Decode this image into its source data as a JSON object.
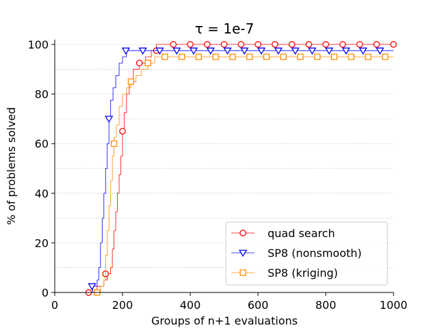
{
  "chart_data": {
    "type": "line",
    "title": "τ = 1e-7",
    "xlabel": "Groups of n+1 evaluations",
    "ylabel": "% of problems solved",
    "xlim": [
      0,
      1000
    ],
    "ylim": [
      0,
      100
    ],
    "xticks": [
      0,
      200,
      400,
      600,
      800,
      1000
    ],
    "yticks": [
      0,
      20,
      40,
      60,
      80,
      100
    ],
    "grid": "horizontal dotted",
    "legend_position": "lower-right",
    "series": [
      {
        "name": "quad search",
        "color": "#ff0000",
        "marker": "circle",
        "steps": [
          [
            0,
            0
          ],
          [
            100,
            0
          ],
          [
            125,
            2.5
          ],
          [
            145,
            5
          ],
          [
            155,
            7.5
          ],
          [
            165,
            10
          ],
          [
            170,
            17.5
          ],
          [
            175,
            25
          ],
          [
            180,
            32.5
          ],
          [
            185,
            40
          ],
          [
            190,
            47.5
          ],
          [
            195,
            55
          ],
          [
            200,
            65
          ],
          [
            205,
            72.5
          ],
          [
            212,
            80
          ],
          [
            220,
            85
          ],
          [
            232,
            90
          ],
          [
            250,
            92.5
          ],
          [
            268,
            95
          ],
          [
            285,
            97.5
          ],
          [
            300,
            100
          ],
          [
            1000,
            100
          ]
        ],
        "markers": [
          [
            100,
            0
          ],
          [
            150,
            7.5
          ],
          [
            200,
            65
          ],
          [
            250,
            92.5
          ],
          [
            300,
            97.5
          ],
          [
            350,
            100
          ],
          [
            400,
            100
          ],
          [
            450,
            100
          ],
          [
            500,
            100
          ],
          [
            550,
            100
          ],
          [
            600,
            100
          ],
          [
            650,
            100
          ],
          [
            700,
            100
          ],
          [
            750,
            100
          ],
          [
            800,
            100
          ],
          [
            850,
            100
          ],
          [
            900,
            100
          ],
          [
            950,
            100
          ],
          [
            1000,
            100
          ]
        ]
      },
      {
        "name": "SP8 (nonsmooth)",
        "color": "#0000ff",
        "marker": "triangle-down",
        "steps": [
          [
            0,
            0
          ],
          [
            105,
            0
          ],
          [
            112,
            2.5
          ],
          [
            125,
            5
          ],
          [
            130,
            10
          ],
          [
            135,
            20
          ],
          [
            140,
            30
          ],
          [
            145,
            40
          ],
          [
            150,
            50
          ],
          [
            155,
            60
          ],
          [
            160,
            70
          ],
          [
            165,
            77.5
          ],
          [
            172,
            82.5
          ],
          [
            180,
            87.5
          ],
          [
            190,
            92.5
          ],
          [
            200,
            95
          ],
          [
            212,
            97.5
          ],
          [
            1000,
            97.5
          ]
        ],
        "markers": [
          [
            110,
            2.5
          ],
          [
            160,
            70
          ],
          [
            210,
            97.5
          ],
          [
            260,
            97.5
          ],
          [
            310,
            97.5
          ],
          [
            360,
            97.5
          ],
          [
            410,
            97.5
          ],
          [
            460,
            97.5
          ],
          [
            510,
            97.5
          ],
          [
            560,
            97.5
          ],
          [
            610,
            97.5
          ],
          [
            660,
            97.5
          ],
          [
            710,
            97.5
          ],
          [
            760,
            97.5
          ],
          [
            810,
            97.5
          ],
          [
            860,
            97.5
          ],
          [
            910,
            97.5
          ],
          [
            960,
            97.5
          ]
        ]
      },
      {
        "name": "SP8 (kriging)",
        "color": "#ff8c00",
        "marker": "square",
        "steps": [
          [
            0,
            0
          ],
          [
            120,
            0
          ],
          [
            135,
            2.5
          ],
          [
            145,
            5
          ],
          [
            150,
            15
          ],
          [
            155,
            25
          ],
          [
            160,
            35
          ],
          [
            165,
            45
          ],
          [
            170,
            55
          ],
          [
            175,
            62.5
          ],
          [
            182,
            67.5
          ],
          [
            190,
            75
          ],
          [
            200,
            80
          ],
          [
            212,
            82.5
          ],
          [
            225,
            85
          ],
          [
            240,
            87.5
          ],
          [
            255,
            90
          ],
          [
            275,
            92.5
          ],
          [
            295,
            95
          ],
          [
            1000,
            95
          ]
        ],
        "markers": [
          [
            125,
            0
          ],
          [
            175,
            60
          ],
          [
            225,
            85
          ],
          [
            275,
            92.5
          ],
          [
            325,
            95
          ],
          [
            375,
            95
          ],
          [
            425,
            95
          ],
          [
            475,
            95
          ],
          [
            525,
            95
          ],
          [
            575,
            95
          ],
          [
            625,
            95
          ],
          [
            675,
            95
          ],
          [
            725,
            95
          ],
          [
            775,
            95
          ],
          [
            825,
            95
          ],
          [
            875,
            95
          ],
          [
            925,
            95
          ],
          [
            975,
            95
          ]
        ]
      }
    ]
  }
}
